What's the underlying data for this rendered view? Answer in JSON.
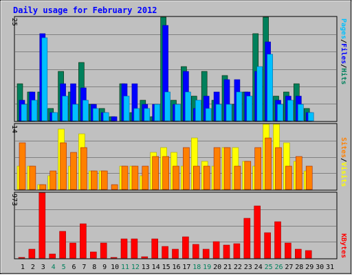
{
  "chart_data": [
    {
      "type": "bar",
      "title": "Daily usage for February 2012",
      "ymax_label": "25",
      "ylim": [
        0,
        25
      ],
      "categories": [
        "1",
        "2",
        "3",
        "4",
        "5",
        "6",
        "7",
        "8",
        "9",
        "10",
        "11",
        "12",
        "13",
        "14",
        "15",
        "16",
        "17",
        "18",
        "19",
        "20",
        "21",
        "22",
        "23",
        "24",
        "25",
        "26",
        "27",
        "28",
        "29",
        "30",
        "31"
      ],
      "weekend_days": [
        4,
        5,
        11,
        12,
        18,
        19,
        25,
        26
      ],
      "series": [
        {
          "name": "Hits",
          "color": "#00805c",
          "values": [
            9,
            7,
            7,
            3,
            12,
            7,
            14,
            4,
            3,
            1,
            9,
            2,
            5,
            1,
            25,
            5,
            13,
            6,
            12,
            5,
            11,
            4,
            7,
            21,
            25,
            6,
            7,
            9,
            3,
            0,
            0
          ]
        },
        {
          "name": "Files",
          "color": "#0000ff",
          "values": [
            5,
            7,
            21,
            2,
            9,
            9,
            8,
            4,
            2,
            1,
            9,
            9,
            4,
            4,
            23,
            4,
            12,
            3,
            6,
            7,
            10,
            10,
            7,
            12,
            19,
            5,
            6,
            6,
            2,
            0,
            0
          ]
        },
        {
          "name": "Pages",
          "color": "#00c0ff",
          "values": [
            4,
            5,
            20,
            2,
            6,
            4,
            5,
            3,
            2,
            0,
            6,
            3,
            3,
            4,
            7,
            4,
            7,
            5,
            3,
            4,
            4,
            7,
            6,
            13,
            16,
            4,
            5,
            4,
            2,
            0,
            0
          ]
        }
      ],
      "legend": {
        "labels": [
          "Pages",
          "Files",
          "Hits"
        ],
        "separator": "/"
      }
    },
    {
      "type": "bar",
      "ymax_label": "14",
      "ylim": [
        0,
        14
      ],
      "categories": [
        "1",
        "2",
        "3",
        "4",
        "5",
        "6",
        "7",
        "8",
        "9",
        "10",
        "11",
        "12",
        "13",
        "14",
        "15",
        "16",
        "17",
        "18",
        "19",
        "20",
        "21",
        "22",
        "23",
        "24",
        "25",
        "26",
        "27",
        "28",
        "29",
        "30",
        "31"
      ],
      "series": [
        {
          "name": "Visits",
          "color": "#ffff00",
          "values": [
            5,
            5,
            1,
            3,
            13,
            5,
            12,
            4,
            4,
            0,
            5,
            5,
            3,
            8,
            9,
            8,
            5,
            11,
            6,
            5,
            9,
            9,
            6,
            5,
            14,
            14,
            10,
            6,
            4,
            0,
            0
          ]
        },
        {
          "name": "Sites",
          "color": "#ff8000",
          "values": [
            10,
            5,
            1,
            4,
            10,
            8,
            9,
            4,
            4,
            1,
            5,
            5,
            5,
            7,
            7,
            5,
            9,
            5,
            5,
            9,
            9,
            5,
            6,
            9,
            11,
            9,
            5,
            7,
            5,
            0,
            0
          ]
        }
      ],
      "legend": {
        "labels": [
          "Sites",
          "Visits"
        ],
        "separator": "/"
      }
    },
    {
      "type": "bar",
      "ymax_label": "973",
      "ylim": [
        0,
        973
      ],
      "categories": [
        "1",
        "2",
        "3",
        "4",
        "5",
        "6",
        "7",
        "8",
        "9",
        "10",
        "11",
        "12",
        "13",
        "14",
        "15",
        "16",
        "17",
        "18",
        "19",
        "20",
        "21",
        "22",
        "23",
        "24",
        "25",
        "26",
        "27",
        "28",
        "29",
        "30",
        "31"
      ],
      "series": [
        {
          "name": "KBytes",
          "color": "#ff0000",
          "values": [
            15,
            130,
            973,
            60,
            395,
            230,
            512,
            90,
            230,
            15,
            290,
            290,
            25,
            290,
            170,
            130,
            320,
            200,
            130,
            250,
            190,
            210,
            590,
            780,
            375,
            540,
            230,
            130,
            110,
            0,
            0
          ]
        }
      ],
      "legend": {
        "labels": [
          "KBytes"
        ],
        "separator": ""
      }
    }
  ]
}
